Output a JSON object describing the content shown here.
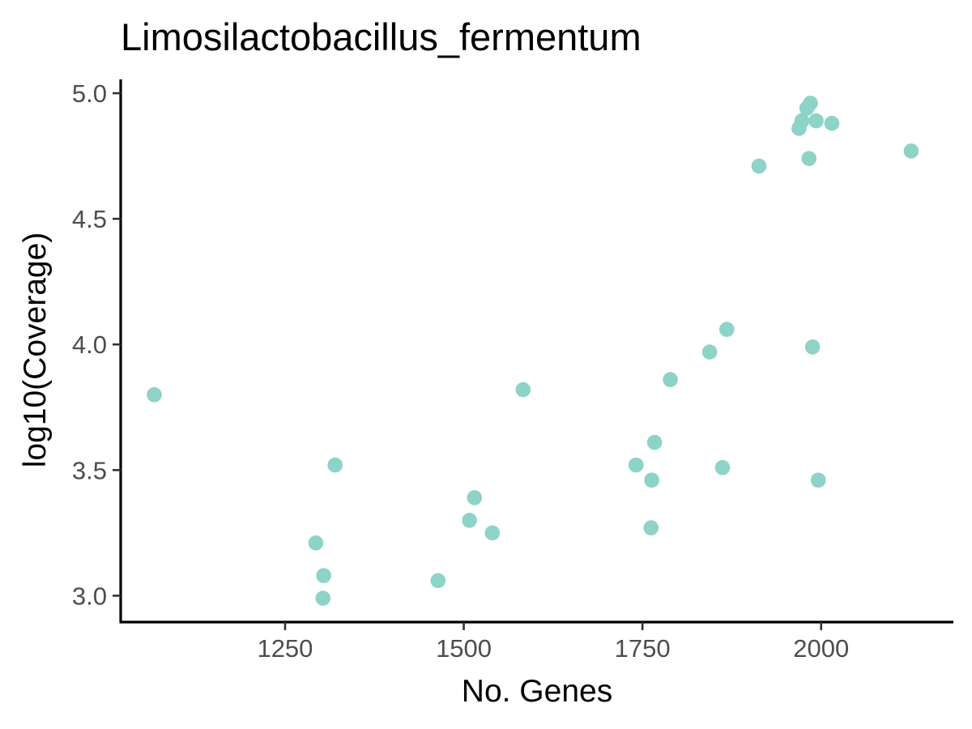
{
  "chart_data": {
    "type": "scatter",
    "title": "Limosilactobacillus_fermentum",
    "xlabel": "No. Genes",
    "ylabel": "log10(Coverage)",
    "xlim": [
      1020,
      2185
    ],
    "ylim": [
      2.895,
      5.055
    ],
    "x_ticks": [
      1250,
      1500,
      1750,
      2000
    ],
    "x_tick_labels": [
      "1250",
      "1500",
      "1750",
      "2000"
    ],
    "y_ticks": [
      3.0,
      3.5,
      4.0,
      4.5,
      5.0
    ],
    "y_tick_labels": [
      "3.0",
      "3.5",
      "4.0",
      "4.5",
      "5.0"
    ],
    "grid": false,
    "legend": "none",
    "point_color": "#8dd3c7",
    "series": [
      {
        "points": [
          {
            "x": 1067,
            "y": 3.8
          },
          {
            "x": 1293,
            "y": 3.21
          },
          {
            "x": 1304,
            "y": 3.08
          },
          {
            "x": 1303,
            "y": 2.99
          },
          {
            "x": 1320,
            "y": 3.52
          },
          {
            "x": 1464,
            "y": 3.06
          },
          {
            "x": 1508,
            "y": 3.3
          },
          {
            "x": 1515,
            "y": 3.39
          },
          {
            "x": 1540,
            "y": 3.25
          },
          {
            "x": 1583,
            "y": 3.82
          },
          {
            "x": 1741,
            "y": 3.52
          },
          {
            "x": 1762,
            "y": 3.27
          },
          {
            "x": 1763,
            "y": 3.46
          },
          {
            "x": 1767,
            "y": 3.61
          },
          {
            "x": 1789,
            "y": 3.86
          },
          {
            "x": 1844,
            "y": 3.97
          },
          {
            "x": 1862,
            "y": 3.51
          },
          {
            "x": 1868,
            "y": 4.06
          },
          {
            "x": 1913,
            "y": 4.71
          },
          {
            "x": 1969,
            "y": 4.86
          },
          {
            "x": 1973,
            "y": 4.89
          },
          {
            "x": 1980,
            "y": 4.94
          },
          {
            "x": 1983,
            "y": 4.74
          },
          {
            "x": 1985,
            "y": 4.96
          },
          {
            "x": 1988,
            "y": 3.99
          },
          {
            "x": 1993,
            "y": 4.89
          },
          {
            "x": 1996,
            "y": 3.46
          },
          {
            "x": 2015,
            "y": 4.88
          },
          {
            "x": 2126,
            "y": 4.77
          }
        ]
      }
    ]
  }
}
